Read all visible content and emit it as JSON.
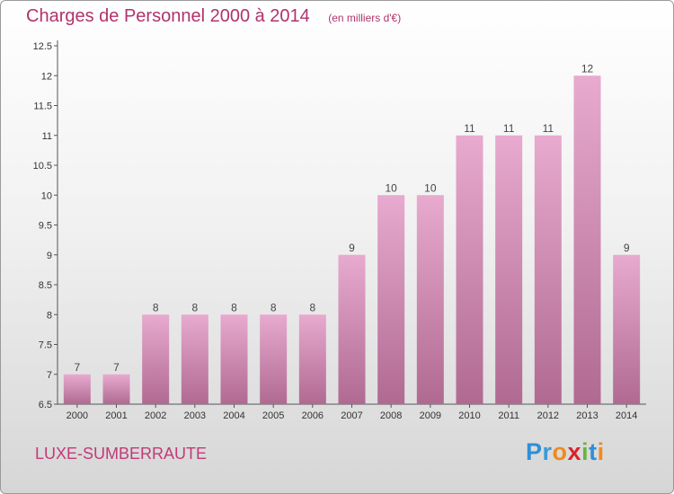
{
  "header": {
    "title": "Charges de Personnel 2000 à 2014",
    "unit_note": "(en milliers d'€)"
  },
  "footer": {
    "commune": "LUXE-SUMBERRAUTE",
    "brand_letters": [
      {
        "char": "P",
        "color": "#2f8fd6"
      },
      {
        "char": "r",
        "color": "#3d9ad8"
      },
      {
        "char": "o",
        "color": "#f08a1c"
      },
      {
        "char": "x",
        "color": "#d9232a"
      },
      {
        "char": "i",
        "color": "#6cb33e"
      },
      {
        "char": "t",
        "color": "#2f8fd6"
      },
      {
        "char": "i",
        "color": "#f08a1c"
      }
    ]
  },
  "colors": {
    "accent": "#b0336c",
    "bar_light": "#e8aacf",
    "bar_dark": "#b06a92"
  },
  "chart_data": {
    "type": "bar",
    "title": "Charges de Personnel 2000 à 2014",
    "xlabel": "",
    "ylabel": "",
    "categories": [
      "2000",
      "2001",
      "2002",
      "2003",
      "2004",
      "2005",
      "2006",
      "2007",
      "2008",
      "2009",
      "2010",
      "2011",
      "2012",
      "2013",
      "2014"
    ],
    "values": [
      7,
      7,
      8,
      8,
      8,
      8,
      8,
      9,
      10,
      10,
      11,
      11,
      11,
      12,
      9
    ],
    "ylim": [
      6.5,
      12.5
    ],
    "yticks": [
      "6.5",
      "7",
      "7.5",
      "8",
      "8.5",
      "9",
      "9.5",
      "10",
      "10.5",
      "11",
      "11.5",
      "12",
      "12.5"
    ],
    "grid": false,
    "legend": "none"
  }
}
